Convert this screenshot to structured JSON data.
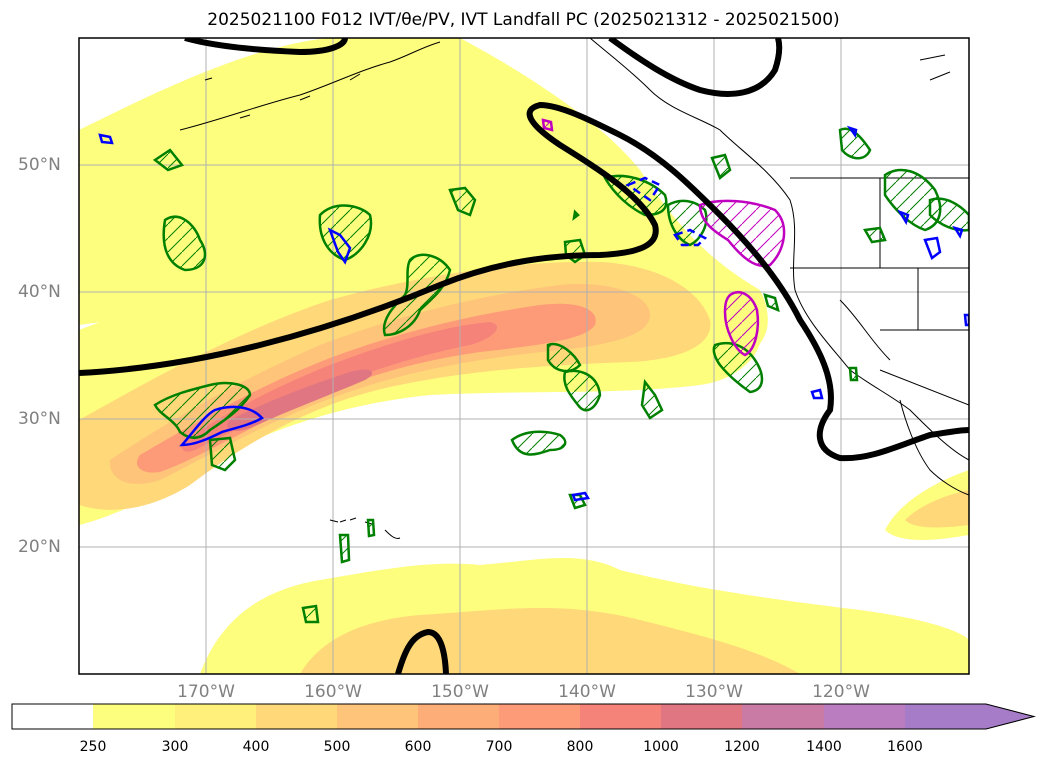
{
  "title": "2025021100 F012 IVT/θe/PV, IVT Landfall PC (2025021312 - 2025021500)",
  "map": {
    "lat_labels": [
      "50°N",
      "40°N",
      "30°N",
      "20°N"
    ],
    "lon_labels": [
      "170°W",
      "160°W",
      "150°W",
      "140°W",
      "130°W",
      "120°W"
    ]
  },
  "colorbar": {
    "levels": [
      "250",
      "300",
      "400",
      "500",
      "600",
      "700",
      "800",
      "1000",
      "1200",
      "1400",
      "1600"
    ],
    "colors": [
      "#ffffff",
      "#fefe7e",
      "#fef07a",
      "#fed879",
      "#fec47a",
      "#fdae78",
      "#fd9a78",
      "#f5837a",
      "#e07682",
      "#c97aa5",
      "#ba7dc0",
      "#a67bc8"
    ]
  },
  "contour_colors": {
    "theta_e": "#000000",
    "pv_positive": "#008000",
    "pv_negative": "#0000ff",
    "landfall": "#c000c0"
  }
}
